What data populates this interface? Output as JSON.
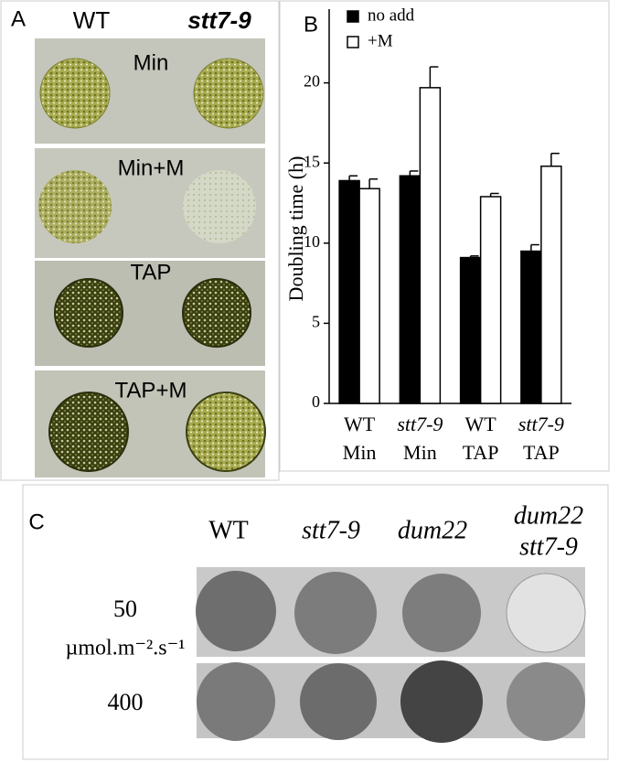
{
  "panel_a": {
    "label": "A",
    "columns": [
      "WT",
      "stt7-9"
    ],
    "rows": [
      "Min",
      "Min+M",
      "TAP",
      "TAP+M"
    ]
  },
  "chart_data": {
    "type": "bar",
    "label": "B",
    "ylabel": "Doubling time (h)",
    "categories": [
      [
        "WT",
        "Min"
      ],
      [
        "stt7-9",
        "Min"
      ],
      [
        "WT",
        "TAP"
      ],
      [
        "stt7-9",
        "TAP"
      ]
    ],
    "series": [
      {
        "name": "no add",
        "color": "#000000",
        "values": [
          13.9,
          14.2,
          9.1,
          9.5
        ],
        "errors": [
          0.3,
          0.3,
          0.1,
          0.4
        ]
      },
      {
        "name": "+M",
        "color": "#ffffff",
        "values": [
          13.4,
          19.7,
          12.9,
          14.8
        ],
        "errors": [
          0.6,
          1.3,
          0.2,
          0.8
        ]
      }
    ],
    "ylim": [
      0,
      24.6
    ],
    "yticks": [
      0,
      5,
      10,
      15,
      20
    ]
  },
  "panel_c": {
    "label": "C",
    "columns": [
      [
        "WT"
      ],
      [
        "stt7-9"
      ],
      [
        "dum22"
      ],
      [
        "dum22",
        "stt7-9"
      ]
    ],
    "rows": [
      [
        "50",
        "µmol.m⁻².s⁻¹"
      ],
      [
        "400"
      ]
    ]
  }
}
